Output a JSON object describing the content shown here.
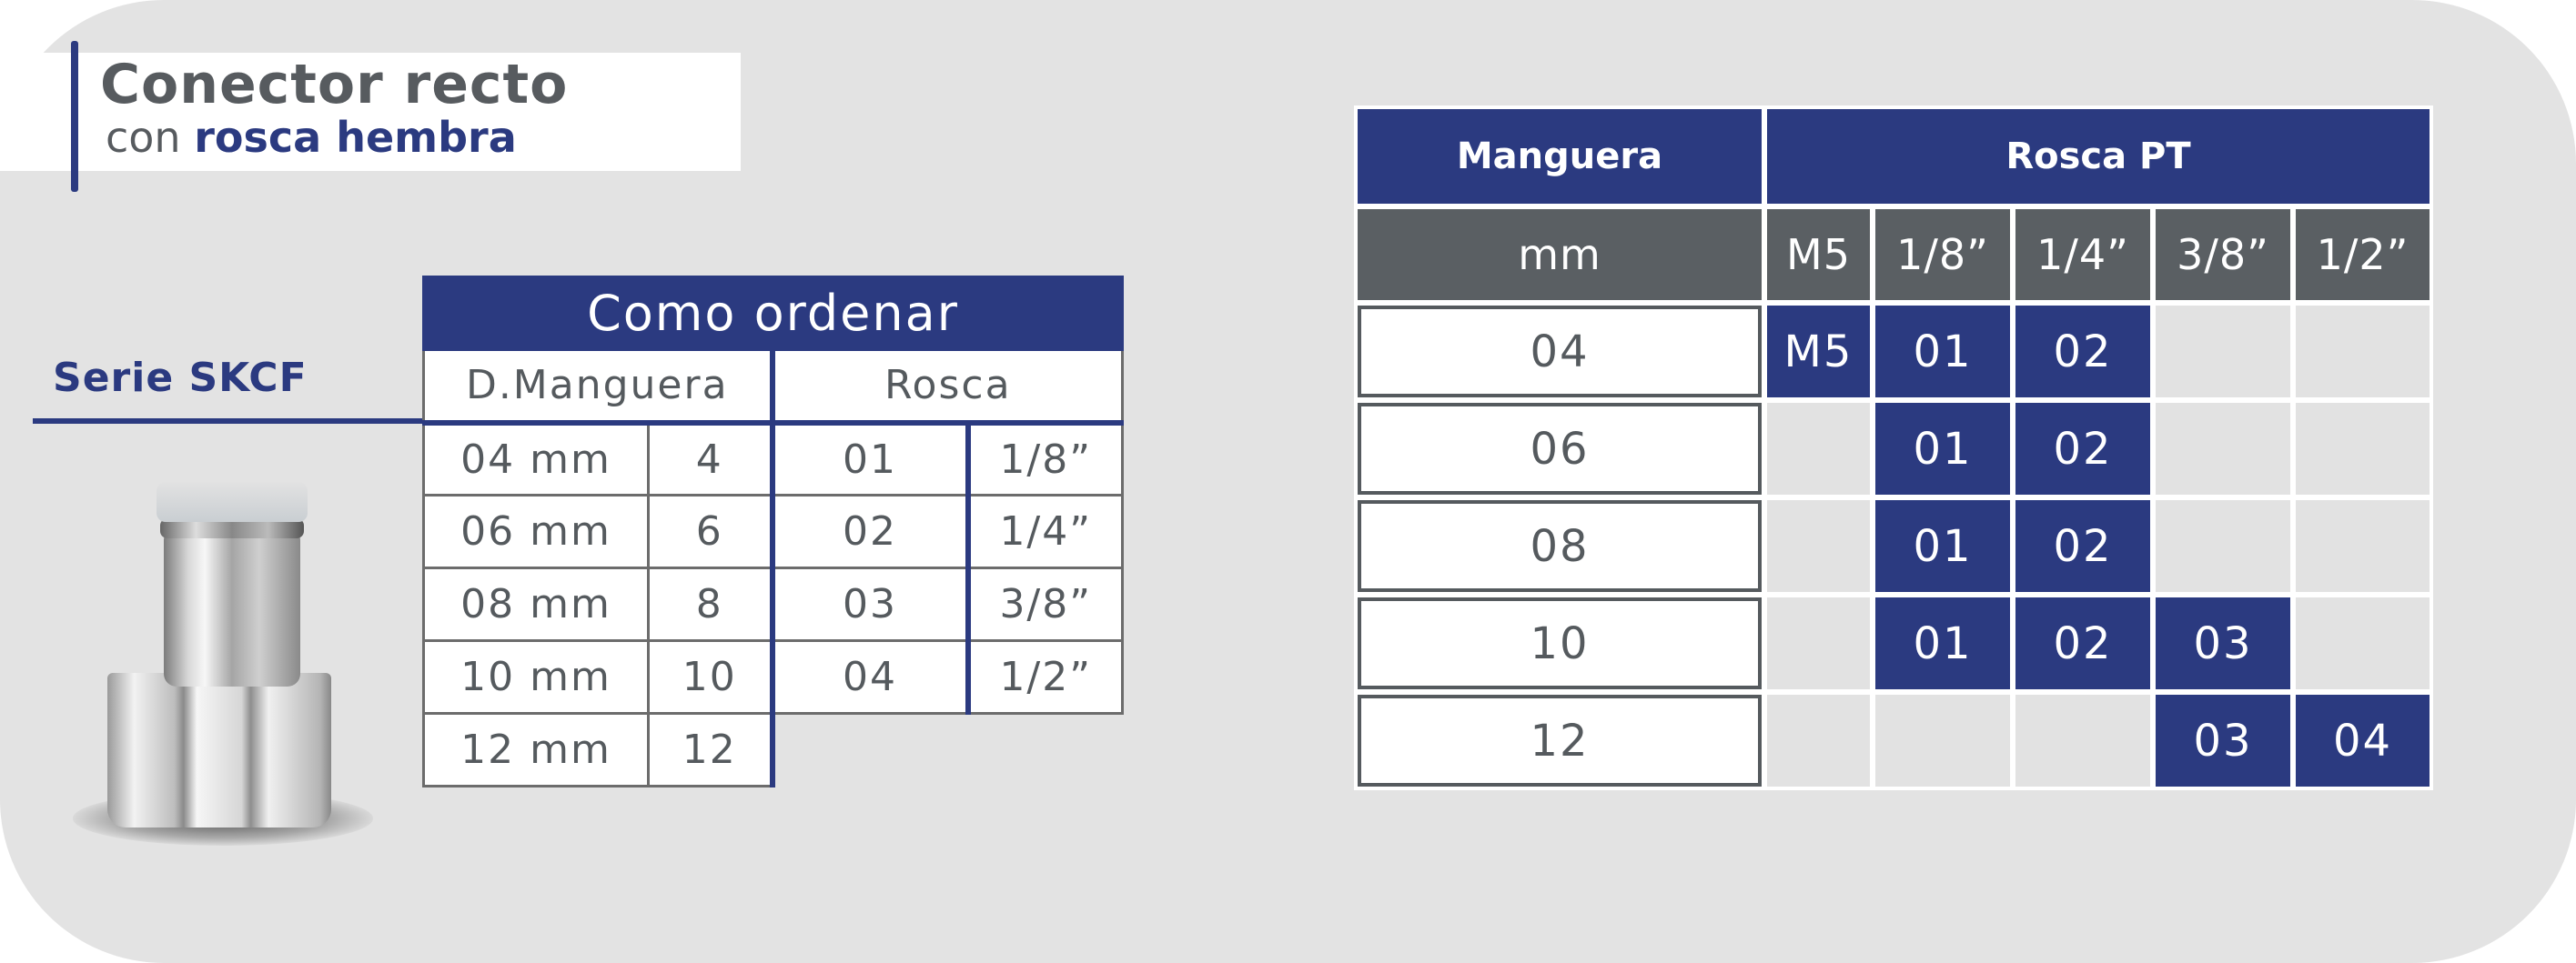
{
  "title": {
    "line1": "Conector recto",
    "line2_plain": "con",
    "line2_bold": "rosca hembra"
  },
  "series_label": "Serie SKCF",
  "colors": {
    "navy": "#2b3a80",
    "gray_header": "#5a5f63",
    "background": "#e3e3e3",
    "text_gray": "#555a5e"
  },
  "product_image": "push-in-straight-female-thread-connector",
  "order_table": {
    "title": "Como ordenar",
    "headers": [
      "D.Manguera",
      "Rosca"
    ],
    "rows": [
      [
        "04 mm",
        "4",
        "01",
        "1/8”"
      ],
      [
        "06 mm",
        "6",
        "02",
        "1/4”"
      ],
      [
        "08 mm",
        "8",
        "03",
        "3/8”"
      ],
      [
        "10 mm",
        "10",
        "04",
        "1/2”"
      ],
      [
        "12 mm",
        "12"
      ]
    ]
  },
  "spec_table": {
    "header_left": "Manguera",
    "header_right": "Rosca PT",
    "unit": "mm",
    "threads": [
      "M5",
      "1/8”",
      "1/4”",
      "3/8”",
      "1/2”"
    ],
    "rows": [
      {
        "hose": "04",
        "cells": [
          "M5",
          "01",
          "02",
          "",
          ""
        ]
      },
      {
        "hose": "06",
        "cells": [
          "",
          "01",
          "02",
          "",
          ""
        ]
      },
      {
        "hose": "08",
        "cells": [
          "",
          "01",
          "02",
          "",
          ""
        ]
      },
      {
        "hose": "10",
        "cells": [
          "",
          "01",
          "02",
          "03",
          ""
        ]
      },
      {
        "hose": "12",
        "cells": [
          "",
          "",
          "",
          "03",
          "04"
        ]
      }
    ]
  }
}
